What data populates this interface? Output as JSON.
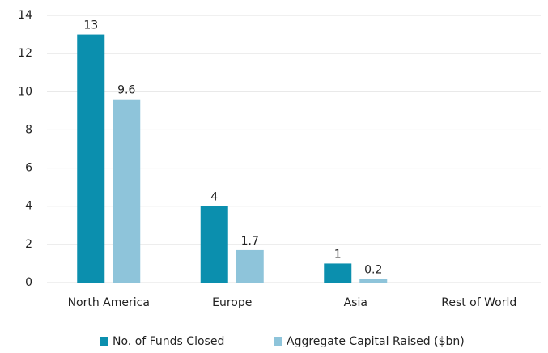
{
  "chart_data": {
    "type": "bar",
    "categories": [
      "North America",
      "Europe",
      "Asia",
      "Rest of World"
    ],
    "series": [
      {
        "name": "No. of Funds Closed",
        "color": "#0b8fae",
        "values": [
          13,
          4,
          1,
          null
        ]
      },
      {
        "name": "Aggregate Capital Raised ($bn)",
        "color": "#8ec4da",
        "values": [
          9.6,
          1.7,
          0.2,
          null
        ]
      }
    ],
    "ylim": [
      0,
      14
    ],
    "yticks": [
      0,
      2,
      4,
      6,
      8,
      10,
      12,
      14
    ],
    "grid": true,
    "legend": "bottom"
  }
}
